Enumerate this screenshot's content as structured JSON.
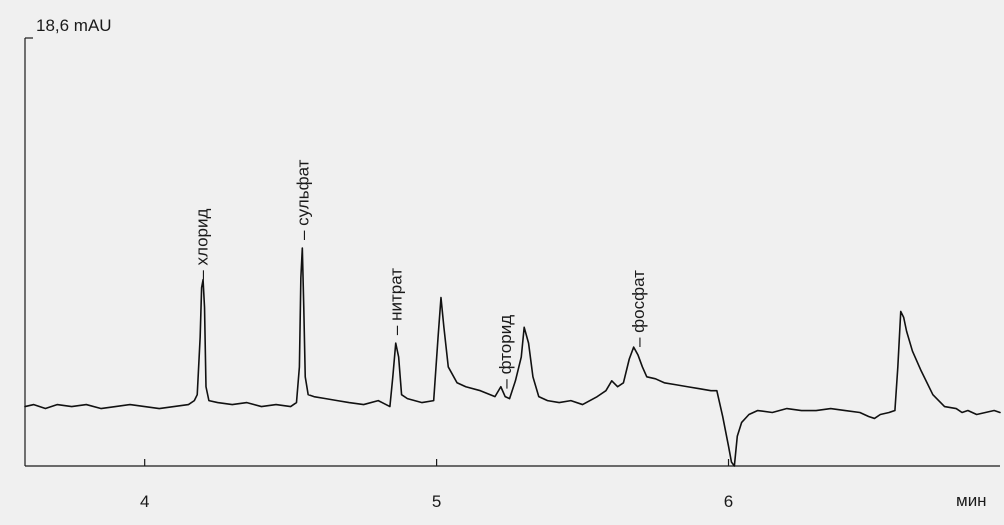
{
  "chart_data": {
    "type": "line",
    "title": "",
    "xlabel": "мин",
    "ylabel": "18,6 mAU",
    "xlim": [
      3.59,
      6.93
    ],
    "ylim": [
      -3.0,
      18.6
    ],
    "grid": false,
    "legend": "none",
    "x_ticks": [
      4,
      5,
      6
    ],
    "x_tick_labels": [
      "4",
      "5",
      "6"
    ],
    "y_ticks": [
      18.6
    ],
    "series": [
      {
        "values_note_free": true,
        "x": [
          3.59,
          3.62,
          3.66,
          3.7,
          3.75,
          3.8,
          3.85,
          3.9,
          3.95,
          4.0,
          4.05,
          4.1,
          4.15,
          4.17,
          4.18,
          4.19,
          4.195,
          4.2,
          4.205,
          4.21,
          4.22,
          4.25,
          4.3,
          4.35,
          4.4,
          4.45,
          4.5,
          4.52,
          4.53,
          4.535,
          4.54,
          4.545,
          4.55,
          4.56,
          4.58,
          4.62,
          4.66,
          4.7,
          4.75,
          4.8,
          4.84,
          4.85,
          4.86,
          4.87,
          4.88,
          4.9,
          4.95,
          4.99,
          5.005,
          5.015,
          5.025,
          5.04,
          5.07,
          5.1,
          5.15,
          5.2,
          5.22,
          5.235,
          5.25,
          5.27,
          5.29,
          5.3,
          5.315,
          5.33,
          5.35,
          5.38,
          5.42,
          5.46,
          5.5,
          5.55,
          5.58,
          5.6,
          5.62,
          5.64,
          5.66,
          5.675,
          5.69,
          5.705,
          5.72,
          5.75,
          5.78,
          5.82,
          5.86,
          5.9,
          5.94,
          5.96,
          5.98,
          6.0,
          6.01,
          6.02,
          6.03,
          6.045,
          6.07,
          6.1,
          6.15,
          6.2,
          6.25,
          6.3,
          6.35,
          6.4,
          6.45,
          6.48,
          6.5,
          6.52,
          6.55,
          6.57,
          6.58,
          6.59,
          6.6,
          6.61,
          6.63,
          6.66,
          6.7,
          6.74,
          6.78,
          6.8,
          6.82,
          6.85,
          6.88,
          6.91,
          6.93
        ],
        "values": [
          0.0,
          0.1,
          -0.1,
          0.1,
          0.0,
          0.1,
          -0.1,
          0.0,
          0.1,
          0.0,
          -0.1,
          0.0,
          0.1,
          0.3,
          0.6,
          3.5,
          6.0,
          6.4,
          5.0,
          1.0,
          0.3,
          0.2,
          0.1,
          0.2,
          0.0,
          0.1,
          0.0,
          0.2,
          2.0,
          6.5,
          8.0,
          5.0,
          1.5,
          0.6,
          0.5,
          0.4,
          0.3,
          0.2,
          0.1,
          0.3,
          0.0,
          1.5,
          3.2,
          2.5,
          0.6,
          0.4,
          0.2,
          0.3,
          3.5,
          5.5,
          4.0,
          2.0,
          1.2,
          1.0,
          0.8,
          0.5,
          1.0,
          0.5,
          0.4,
          1.3,
          2.5,
          4.0,
          3.2,
          1.5,
          0.5,
          0.3,
          0.2,
          0.3,
          0.1,
          0.5,
          0.8,
          1.3,
          1.0,
          1.2,
          2.4,
          3.0,
          2.6,
          2.0,
          1.5,
          1.4,
          1.2,
          1.1,
          1.0,
          0.9,
          0.8,
          0.8,
          -0.5,
          -2.0,
          -2.8,
          -3.0,
          -1.5,
          -0.8,
          -0.4,
          -0.2,
          -0.3,
          -0.1,
          -0.2,
          -0.2,
          -0.1,
          -0.2,
          -0.3,
          -0.5,
          -0.6,
          -0.4,
          -0.3,
          -0.2,
          2.0,
          4.8,
          4.5,
          3.8,
          2.8,
          1.8,
          0.6,
          0.0,
          -0.1,
          -0.3,
          -0.2,
          -0.4,
          -0.3,
          -0.2,
          -0.3
        ]
      }
    ],
    "annotations": [
      {
        "text": "– хлорид",
        "x": 4.195
      },
      {
        "text": "– сульфат",
        "x": 4.54
      },
      {
        "text": "– нитрат",
        "x": 4.86
      },
      {
        "text": "– фторид",
        "x": 5.235
      },
      {
        "text": "– фосфат",
        "x": 5.69
      }
    ]
  }
}
